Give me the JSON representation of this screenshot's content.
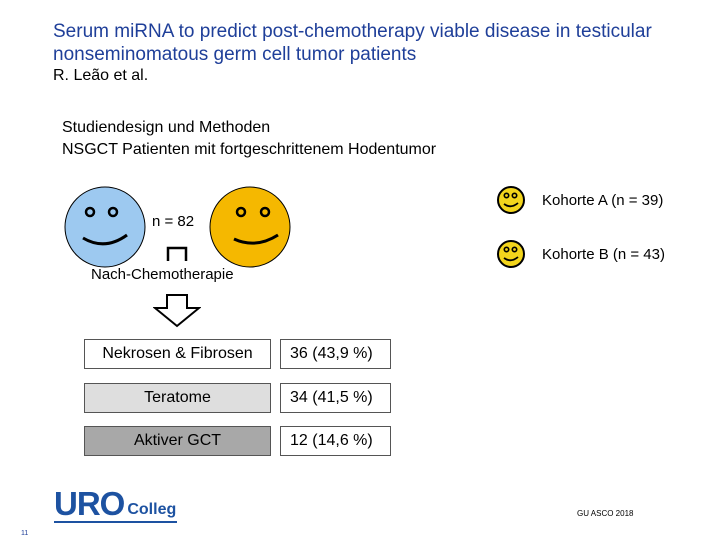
{
  "slide": {
    "title": "Serum miRNA to predict post-chemotherapy viable disease in testicular nonseminomatous germ cell tumor patients",
    "authors": "R. Leão et al."
  },
  "study": {
    "line1": "Studiendesign und Methoden",
    "line2": "NSGCT Patienten mit fortgeschrittenem Hodentumor"
  },
  "cohort_graphic": {
    "n_label": "n = 82",
    "after_label": "Nach-Chemotherapie",
    "cohort_a": "Kohorte A (n = 39)",
    "cohort_b": "Kohorte B (n = 43)",
    "colors": {
      "blue_face": "#9dc9f0",
      "yellow_face": "#f5b800",
      "small_face": "#f3d51c"
    }
  },
  "results": [
    {
      "label": "Nekrosen & Fibrosen",
      "value": "36 (43,9 %)"
    },
    {
      "label": "Teratome",
      "value": "34 (41,5 %)"
    },
    {
      "label": "Aktiver GCT",
      "value": "12 (14,6 %)"
    }
  ],
  "footer": {
    "logo_main": "URO",
    "logo_sub": "Colleg",
    "source": "GU ASCO 2018",
    "page": "11"
  }
}
